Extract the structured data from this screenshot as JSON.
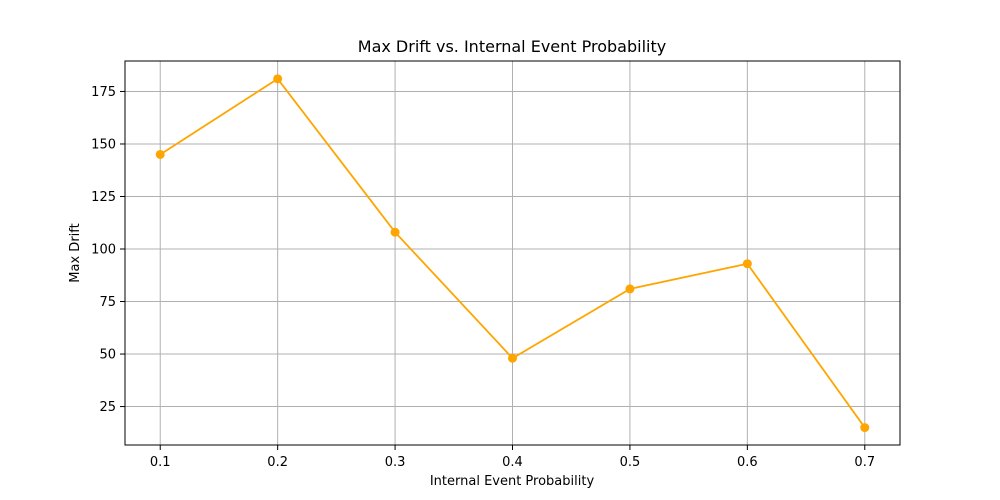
{
  "chart_data": {
    "type": "line",
    "title": "Max Drift vs. Internal Event Probability",
    "xlabel": "Internal Event Probability",
    "ylabel": "Max Drift",
    "x": [
      0.1,
      0.2,
      0.3,
      0.4,
      0.5,
      0.6,
      0.7
    ],
    "x_tick_labels": [
      "0.1",
      "0.2",
      "0.3",
      "0.4",
      "0.5",
      "0.6",
      "0.7"
    ],
    "y_ticks": [
      25,
      50,
      75,
      100,
      125,
      150,
      175
    ],
    "y_tick_labels": [
      "25",
      "50",
      "75",
      "100",
      "125",
      "150",
      "175"
    ],
    "xlim": [
      0.07,
      0.73
    ],
    "ylim": [
      6.7,
      189.5
    ],
    "grid": true,
    "series": [
      {
        "values": [
          145,
          181,
          108,
          48,
          81,
          93,
          15
        ],
        "color": "#ffa500",
        "marker": "circle"
      }
    ]
  }
}
